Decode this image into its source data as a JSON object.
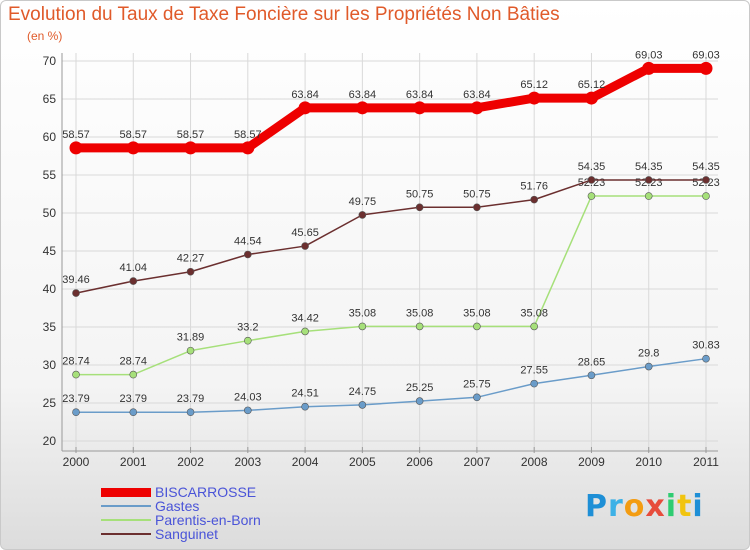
{
  "title": "Evolution du Taux de Taxe Foncière sur les Propriétés Non Bâties",
  "unit_label": "(en %)",
  "brand": {
    "letters": [
      "P",
      "r",
      "o",
      "x",
      "i",
      "t",
      "i"
    ],
    "colors": [
      "#1e8fd6",
      "#3db1e6",
      "#f39c12",
      "#e74c3c",
      "#2ecc71",
      "#f1c40f",
      "#1e8fd6"
    ]
  },
  "chart_data": {
    "type": "line",
    "title": "Evolution du Taux de Taxe Foncière sur les Propriétés Non Bâties",
    "ylabel": "(en %)",
    "xlabel": "",
    "x": [
      "2000",
      "2001",
      "2002",
      "2003",
      "2004",
      "2005",
      "2006",
      "2007",
      "2008",
      "2009",
      "2010",
      "2011"
    ],
    "ylim": [
      20,
      70
    ],
    "yticks": [
      "20",
      "25",
      "30",
      "35",
      "40",
      "45",
      "50",
      "55",
      "60",
      "65",
      "70"
    ],
    "series": [
      {
        "name": "BISCARROSSE",
        "color": "#ee0000",
        "values": [
          58.57,
          58.57,
          58.57,
          58.57,
          63.84,
          63.84,
          63.84,
          63.84,
          65.12,
          65.12,
          69.03,
          69.03
        ],
        "labels": [
          "58.57",
          "58.57",
          "58.57",
          "58.57",
          "63.84",
          "63.84",
          "63.84",
          "63.84",
          "65.12",
          "65.12",
          "69.03",
          "69.03"
        ]
      },
      {
        "name": "Gastes",
        "color": "#6a9cc9",
        "values": [
          23.79,
          23.79,
          23.79,
          24.03,
          24.51,
          24.75,
          25.25,
          25.75,
          27.55,
          28.65,
          29.8,
          30.83
        ],
        "labels": [
          "23.79",
          "23.79",
          "23.79",
          "24.03",
          "24.51",
          "24.75",
          "25.25",
          "25.75",
          "27.55",
          "28.65",
          "29.8",
          "30.83"
        ]
      },
      {
        "name": "Parentis-en-Born",
        "color": "#a6e07a",
        "values": [
          28.74,
          28.74,
          31.89,
          33.2,
          34.42,
          35.08,
          35.08,
          35.08,
          35.08,
          52.23,
          52.23,
          52.23
        ],
        "labels": [
          "28.74",
          "28.74",
          "31.89",
          "33.2",
          "34.42",
          "35.08",
          "35.08",
          "35.08",
          "35.08",
          "52.23",
          "52.23",
          "52.23"
        ]
      },
      {
        "name": "Sanguinet",
        "color": "#6b2f2f",
        "values": [
          39.46,
          41.04,
          42.27,
          44.54,
          45.65,
          49.75,
          50.75,
          50.75,
          51.76,
          54.35,
          54.35,
          54.35
        ],
        "labels": [
          "39.46",
          "41.04",
          "42.27",
          "44.54",
          "45.65",
          "49.75",
          "50.75",
          "50.75",
          "51.76",
          "54.35",
          "54.35",
          "54.35"
        ]
      }
    ]
  }
}
